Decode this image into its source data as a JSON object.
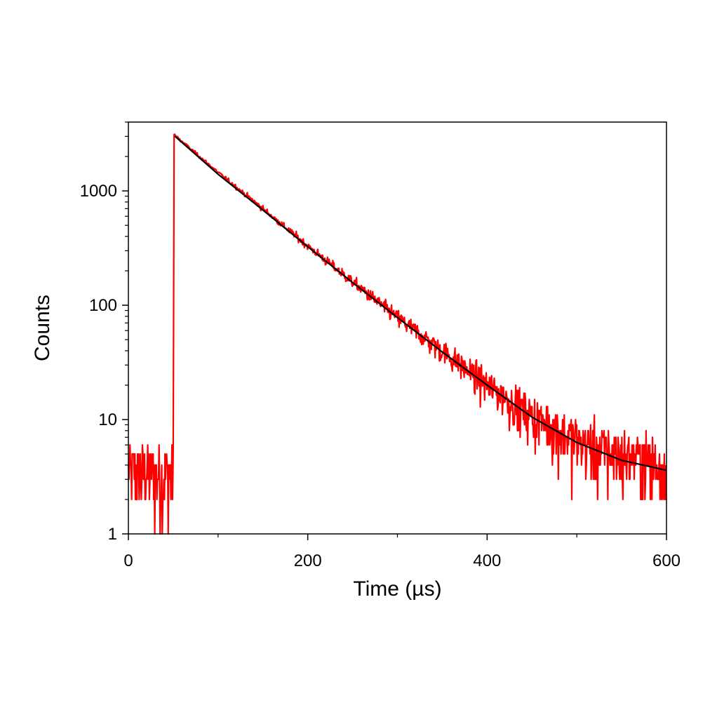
{
  "chart_data": {
    "type": "line",
    "title": "",
    "xlabel": "Time (µs)",
    "ylabel": "Counts",
    "xlim": [
      0,
      600
    ],
    "ylim": [
      1,
      4000
    ],
    "yscale": "log",
    "grid": false,
    "legend": "none",
    "x_ticks": [
      0,
      200,
      400,
      600
    ],
    "x_tick_labels": [
      "0",
      "200",
      "400",
      "600"
    ],
    "y_ticks": [
      1,
      10,
      100,
      1000
    ],
    "y_tick_labels": [
      "1",
      "10",
      "100",
      "1000"
    ],
    "series": [
      {
        "role": "measured decay",
        "color": "#ff0000",
        "baseline_before_pulse": {
          "x_range": [
            0,
            50
          ],
          "counts_range": [
            1,
            6
          ]
        },
        "pulse_time": 50,
        "peak_counts": 3100,
        "x": [
          0,
          25,
          50,
          51,
          100,
          150,
          200,
          250,
          300,
          350,
          400,
          450,
          500,
          550,
          600
        ],
        "values": [
          3,
          2,
          3,
          3100,
          1450,
          700,
          330,
          160,
          78,
          40,
          20,
          11,
          6.5,
          4.8,
          4
        ]
      },
      {
        "role": "fit",
        "color": "#000000",
        "x": [
          52,
          100,
          150,
          200,
          250,
          300,
          350,
          400,
          450,
          500,
          550,
          600
        ],
        "values": [
          3000,
          1400,
          680,
          325,
          158,
          78,
          39,
          20,
          10.5,
          6.3,
          4.4,
          3.6
        ]
      }
    ]
  }
}
